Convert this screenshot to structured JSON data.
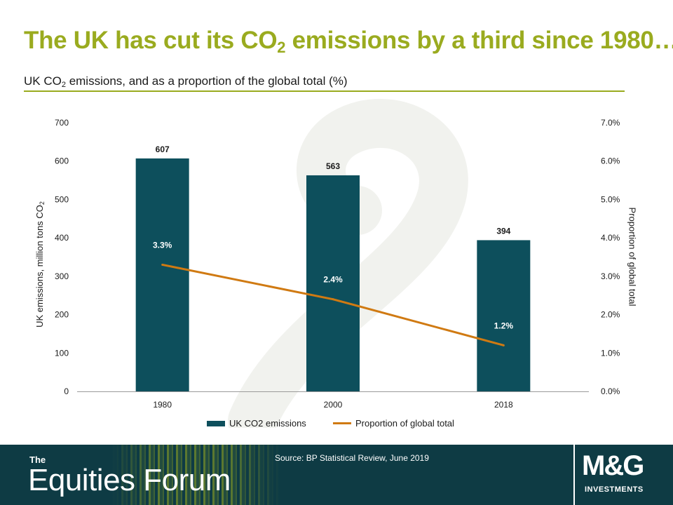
{
  "header": {
    "title_main": "The UK has cut its CO",
    "title_sub": "2",
    "title_end": " emissions by a third since 1980…",
    "subtitle_main": "UK CO",
    "subtitle_sub": "2",
    "subtitle_end": " emissions, and as a proportion of the global total (%)"
  },
  "chart_data": {
    "type": "bar",
    "categories": [
      "1980",
      "2000",
      "2018"
    ],
    "series": [
      {
        "name": "UK CO2 emissions",
        "type": "bar",
        "axis": "left",
        "values": [
          607,
          563,
          394
        ],
        "labels": [
          "607",
          "563",
          "394"
        ],
        "color": "#0d4f5c"
      },
      {
        "name": "Proportion of global total",
        "type": "line",
        "axis": "right",
        "values": [
          3.3,
          2.4,
          1.2
        ],
        "labels": [
          "3.3%",
          "2.4%",
          "1.2%"
        ],
        "color": "#d07a12"
      }
    ],
    "y_left": {
      "label_main": "UK emissions, million tons CO",
      "label_sub": "2",
      "ylim": [
        0,
        700
      ],
      "ticks": [
        "0",
        "100",
        "200",
        "300",
        "400",
        "500",
        "600",
        "700"
      ]
    },
    "y_right": {
      "label": "Proportion of global total",
      "ylim": [
        0,
        7
      ],
      "ticks": [
        "0.0%",
        "1.0%",
        "2.0%",
        "3.0%",
        "4.0%",
        "5.0%",
        "6.0%",
        "7.0%"
      ]
    },
    "grid": false,
    "legend_position": "bottom"
  },
  "footer": {
    "brand_the": "The",
    "brand_name": "Equities Forum",
    "source": "Source: BP Statistical Review,  June 2019",
    "logo_main": "M&G",
    "logo_sub": "INVESTMENTS"
  },
  "colors": {
    "accent": "#9aab1f",
    "bar": "#0d4f5c",
    "line": "#d07a12",
    "footer": "#0e3b44"
  }
}
